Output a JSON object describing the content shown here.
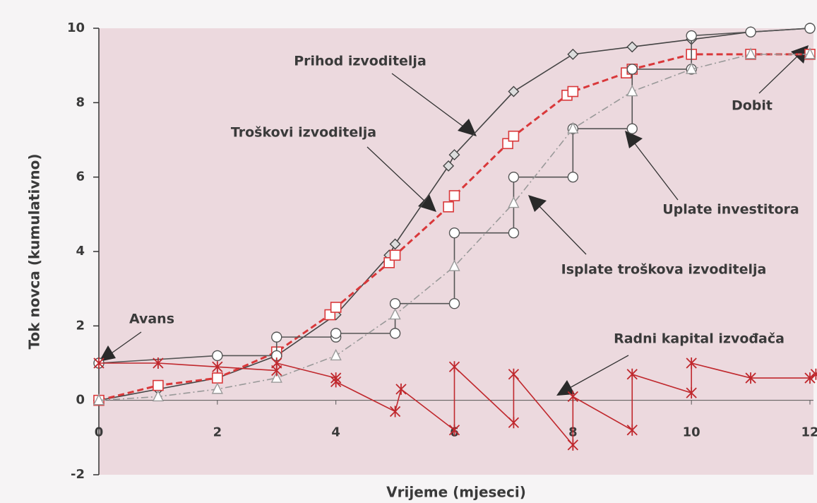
{
  "chart_data": {
    "type": "line",
    "xlabel": "Vrijeme (mjeseci)",
    "ylabel": "Tok novca (kumulativno)",
    "xlim": [
      0,
      12
    ],
    "ylim": [
      -2,
      10
    ],
    "xticks": [
      0,
      2,
      4,
      6,
      8,
      10,
      12
    ],
    "yticks": [
      -2,
      0,
      2,
      4,
      6,
      8,
      10
    ],
    "annotations": [
      "Avans",
      "Dobit"
    ],
    "series": [
      {
        "name": "Prihod izvoditelja",
        "color": "#444444",
        "marker": "diamond",
        "dash": "solid",
        "x": [
          0,
          1,
          2,
          3,
          4,
          4.9,
          5,
          5.9,
          6,
          7,
          8,
          9,
          10,
          11,
          12
        ],
        "values": [
          0,
          0.3,
          0.6,
          1.2,
          2.3,
          3.9,
          4.2,
          6.3,
          6.6,
          8.3,
          9.3,
          9.5,
          9.7,
          9.9,
          10
        ]
      },
      {
        "name": "Troškovi izvoditelja",
        "color": "#d9383a",
        "marker": "square",
        "dash": "dashed",
        "x": [
          0,
          1,
          2,
          3,
          3.9,
          4,
          4.9,
          5,
          5.9,
          6,
          6.9,
          7,
          7.9,
          8,
          8.9,
          9,
          10,
          11,
          12
        ],
        "values": [
          0,
          0.4,
          0.6,
          1.3,
          2.3,
          2.5,
          3.7,
          3.9,
          5.2,
          5.5,
          6.9,
          7.1,
          8.2,
          8.3,
          8.8,
          8.9,
          9.3,
          9.3,
          9.3
        ]
      },
      {
        "name": "Uplate investitora",
        "color": "#555555",
        "marker": "circle",
        "dash": "solid",
        "x": [
          0,
          2,
          3,
          3,
          4,
          4,
          5,
          5,
          6,
          6,
          7,
          7,
          8,
          8,
          9,
          9,
          10,
          10,
          11,
          12
        ],
        "values": [
          1.0,
          1.2,
          1.2,
          1.7,
          1.7,
          1.8,
          1.8,
          2.6,
          2.6,
          4.5,
          4.5,
          6.0,
          6.0,
          7.3,
          7.3,
          8.9,
          8.9,
          9.8,
          9.9,
          10
        ]
      },
      {
        "name": "Isplate troškova izvoditelja",
        "color": "#999999",
        "marker": "triangle",
        "dash": "dashdot",
        "x": [
          0,
          1,
          2,
          3,
          4,
          5,
          6,
          7,
          8,
          9,
          10,
          11,
          12
        ],
        "values": [
          0,
          0.1,
          0.3,
          0.6,
          1.2,
          2.3,
          3.6,
          5.3,
          7.3,
          8.3,
          8.9,
          9.3,
          9.3
        ]
      },
      {
        "name": "Radni kapital izvođača",
        "color": "#c0282d",
        "marker": "star",
        "dash": "solid",
        "x": [
          0,
          1,
          2,
          3,
          3,
          4,
          4,
          5,
          5.1,
          6,
          6,
          7,
          7,
          8,
          8,
          9,
          9,
          10,
          10,
          11,
          12,
          12.1
        ],
        "values": [
          1.0,
          1.0,
          0.9,
          0.8,
          1.0,
          0.6,
          0.5,
          -0.3,
          0.3,
          -0.8,
          0.9,
          -0.6,
          0.7,
          -1.2,
          0.1,
          -0.8,
          0.7,
          0.2,
          1.0,
          0.6,
          0.6,
          0.7
        ]
      }
    ]
  }
}
